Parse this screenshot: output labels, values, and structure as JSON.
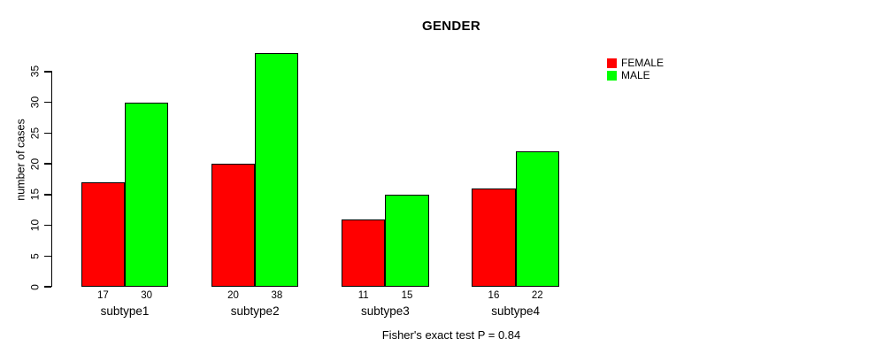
{
  "chart_data": {
    "type": "bar",
    "title": "GENDER",
    "ylabel": "number of cases",
    "xlabel": "",
    "categories": [
      "subtype1",
      "subtype2",
      "subtype3",
      "subtype4"
    ],
    "series": [
      {
        "name": "FEMALE",
        "color": "#ff0000",
        "values": [
          17,
          20,
          11,
          16
        ]
      },
      {
        "name": "MALE",
        "color": "#00ff00",
        "values": [
          30,
          38,
          15,
          22
        ]
      }
    ],
    "bar_value_labels_shown": true,
    "yticks": [
      0,
      5,
      10,
      15,
      20,
      25,
      30,
      35
    ],
    "ylim": [
      0,
      38
    ],
    "grid": false,
    "legend_position": "top-right",
    "annotation": "Fisher's exact test P = 0.84"
  },
  "colors": {
    "background": "#ffffff",
    "axis": "#000000",
    "text": "#000000",
    "bar_border": "#000000"
  }
}
